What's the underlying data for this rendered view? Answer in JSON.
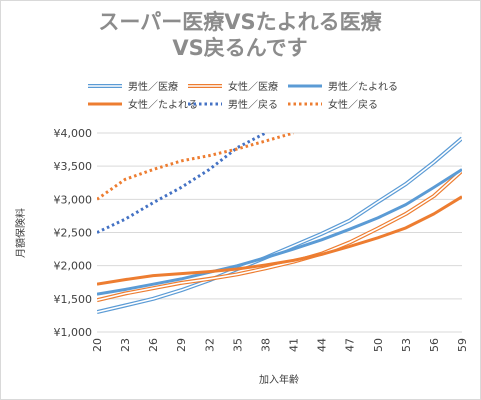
{
  "chart_data": {
    "type": "line",
    "title_line1": "スーパー医療VSたよれる医療",
    "title_line2": "VS戻るんです",
    "xlabel": "加入年齢",
    "ylabel": "月額保険料",
    "x": [
      20,
      23,
      26,
      29,
      32,
      35,
      38,
      41,
      44,
      47,
      50,
      53,
      56,
      59
    ],
    "x_tick_labels": [
      "20",
      "23",
      "26",
      "29",
      "32",
      "35",
      "38",
      "41",
      "44",
      "47",
      "50",
      "53",
      "56",
      "59"
    ],
    "ylim": [
      1000,
      4000
    ],
    "y_ticks": [
      1000,
      1500,
      2000,
      2500,
      3000,
      3500,
      4000
    ],
    "y_tick_labels": [
      "¥1,000",
      "¥1,500",
      "¥2,000",
      "¥2,500",
      "¥3,000",
      "¥3,500",
      "¥4,000"
    ],
    "grid": true,
    "legend_position": "top",
    "series": [
      {
        "name": "男性／医療",
        "color": "#5b9bd5",
        "style": "double",
        "x": [
          20,
          23,
          26,
          29,
          32,
          35,
          38,
          41,
          44,
          47,
          50,
          53,
          56,
          59
        ],
        "values": [
          1300,
          1400,
          1500,
          1630,
          1780,
          1950,
          2120,
          2300,
          2480,
          2680,
          2960,
          3230,
          3560,
          3920
        ]
      },
      {
        "name": "女性／医療",
        "color": "#ed7d31",
        "style": "double",
        "x": [
          20,
          23,
          26,
          29,
          32,
          35,
          38,
          41,
          44,
          47,
          50,
          53,
          56,
          59
        ],
        "values": [
          1480,
          1580,
          1660,
          1740,
          1800,
          1870,
          1960,
          2060,
          2180,
          2350,
          2560,
          2780,
          3050,
          3430
        ]
      },
      {
        "name": "男性／たよれる",
        "color": "#5b9bd5",
        "style": "solid",
        "x": [
          20,
          23,
          26,
          29,
          32,
          35,
          38,
          41,
          44,
          47,
          50,
          53,
          56,
          59
        ],
        "values": [
          1570,
          1640,
          1720,
          1800,
          1900,
          2000,
          2120,
          2250,
          2390,
          2550,
          2720,
          2920,
          3180,
          3450
        ]
      },
      {
        "name": "女性／たよれる",
        "color": "#ed7d31",
        "style": "solid",
        "x": [
          20,
          23,
          26,
          29,
          32,
          35,
          38,
          41,
          44,
          47,
          50,
          53,
          56,
          59
        ],
        "values": [
          1720,
          1790,
          1850,
          1880,
          1910,
          1950,
          2010,
          2080,
          2170,
          2290,
          2420,
          2570,
          2780,
          3040
        ]
      },
      {
        "name": "男性／戻る",
        "color": "#4472c4",
        "style": "dotted",
        "x": [
          20,
          23,
          26,
          29,
          32,
          35,
          38
        ],
        "values": [
          2500,
          2700,
          2950,
          3180,
          3450,
          3780,
          4000
        ]
      },
      {
        "name": "女性／戻る",
        "color": "#ed7d31",
        "style": "dotted",
        "x": [
          20,
          23,
          26,
          29,
          32,
          35,
          38,
          41
        ],
        "values": [
          3000,
          3300,
          3450,
          3580,
          3660,
          3760,
          3880,
          4000
        ]
      }
    ]
  }
}
